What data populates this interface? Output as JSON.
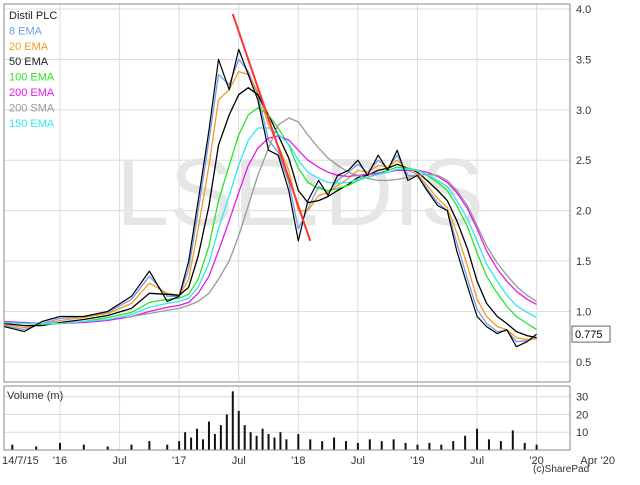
{
  "chart_data": {
    "type": "line",
    "title": "Distil PLC",
    "watermark": "LSE:DIS",
    "credit": "(c)SharePad",
    "price_axis": {
      "ylim": [
        0.3,
        4.05
      ],
      "ticks": [
        "4.0",
        "3.5",
        "3.0",
        "2.5",
        "2.0",
        "1.5",
        "1.0",
        "0.5"
      ],
      "tick_values": [
        4.0,
        3.5,
        3.0,
        2.5,
        2.0,
        1.5,
        1.0,
        0.5
      ]
    },
    "last_price": {
      "label": "0.775",
      "value": 0.775
    },
    "x_axis": {
      "labels": [
        "14/7/15",
        "'16",
        "Jul",
        "'17",
        "Jul",
        "'18",
        "Jul",
        "'19",
        "Jul",
        "'20",
        "Apr '20"
      ],
      "label_dates": [
        2015.53,
        2016.0,
        2016.5,
        2017.0,
        2017.5,
        2018.0,
        2018.5,
        2019.0,
        2019.5,
        2020.0,
        2020.25
      ],
      "range": [
        2015.53,
        2020.28
      ]
    },
    "grid": true,
    "legend_placement": "top-left",
    "series": [
      {
        "name": "Distil PLC",
        "role": "price",
        "color": "#000000",
        "x": [
          2015.53,
          2015.7,
          2015.85,
          2016.0,
          2016.2,
          2016.4,
          2016.6,
          2016.75,
          2016.9,
          2017.0,
          2017.08,
          2017.16,
          2017.25,
          2017.33,
          2017.42,
          2017.5,
          2017.58,
          2017.66,
          2017.75,
          2017.83,
          2017.92,
          2018.0,
          2018.08,
          2018.17,
          2018.25,
          2018.33,
          2018.42,
          2018.5,
          2018.58,
          2018.67,
          2018.75,
          2018.83,
          2018.92,
          2019.0,
          2019.08,
          2019.17,
          2019.25,
          2019.33,
          2019.42,
          2019.5,
          2019.58,
          2019.67,
          2019.75,
          2019.83,
          2019.92,
          2020.0
        ],
        "y": [
          0.85,
          0.8,
          0.9,
          0.95,
          0.95,
          1.0,
          1.15,
          1.4,
          1.1,
          1.15,
          1.5,
          2.1,
          2.8,
          3.5,
          3.2,
          3.6,
          3.35,
          3.1,
          2.6,
          2.55,
          2.2,
          1.7,
          2.1,
          2.3,
          2.15,
          2.35,
          2.4,
          2.5,
          2.35,
          2.55,
          2.4,
          2.6,
          2.3,
          2.35,
          2.2,
          2.05,
          2.0,
          1.6,
          1.25,
          0.95,
          0.85,
          0.78,
          0.82,
          0.65,
          0.7,
          0.775
        ]
      },
      {
        "name": "8 EMA",
        "color": "#6f9cf0",
        "x": [
          2015.53,
          2015.7,
          2015.85,
          2016.0,
          2016.2,
          2016.4,
          2016.6,
          2016.75,
          2016.9,
          2017.0,
          2017.08,
          2017.16,
          2017.25,
          2017.33,
          2017.42,
          2017.5,
          2017.58,
          2017.66,
          2017.75,
          2017.83,
          2017.92,
          2018.0,
          2018.08,
          2018.17,
          2018.25,
          2018.33,
          2018.42,
          2018.5,
          2018.58,
          2018.67,
          2018.75,
          2018.83,
          2018.92,
          2019.0,
          2019.08,
          2019.17,
          2019.25,
          2019.33,
          2019.42,
          2019.5,
          2019.58,
          2019.67,
          2019.75,
          2019.83,
          2019.92,
          2020.0
        ],
        "y": [
          0.86,
          0.82,
          0.88,
          0.93,
          0.95,
          0.99,
          1.12,
          1.35,
          1.15,
          1.15,
          1.42,
          2.0,
          2.7,
          3.35,
          3.25,
          3.5,
          3.38,
          3.15,
          2.7,
          2.58,
          2.28,
          1.82,
          2.02,
          2.24,
          2.18,
          2.3,
          2.38,
          2.46,
          2.38,
          2.5,
          2.42,
          2.55,
          2.35,
          2.35,
          2.22,
          2.08,
          2.0,
          1.68,
          1.32,
          1.02,
          0.88,
          0.8,
          0.81,
          0.7,
          0.71,
          0.74
        ]
      },
      {
        "name": "20 EMA",
        "color": "#f39c1e",
        "x": [
          2015.53,
          2015.7,
          2015.85,
          2016.0,
          2016.2,
          2016.4,
          2016.6,
          2016.75,
          2016.9,
          2017.0,
          2017.08,
          2017.16,
          2017.25,
          2017.33,
          2017.42,
          2017.5,
          2017.58,
          2017.66,
          2017.75,
          2017.83,
          2017.92,
          2018.0,
          2018.08,
          2018.17,
          2018.25,
          2018.33,
          2018.42,
          2018.5,
          2018.58,
          2018.67,
          2018.75,
          2018.83,
          2018.92,
          2019.0,
          2019.08,
          2019.17,
          2019.25,
          2019.33,
          2019.42,
          2019.5,
          2019.58,
          2019.67,
          2019.75,
          2019.83,
          2019.92,
          2020.0
        ],
        "y": [
          0.87,
          0.84,
          0.87,
          0.91,
          0.94,
          0.98,
          1.08,
          1.28,
          1.18,
          1.16,
          1.32,
          1.82,
          2.45,
          3.1,
          3.2,
          3.38,
          3.35,
          3.18,
          2.85,
          2.65,
          2.4,
          2.0,
          2.0,
          2.15,
          2.18,
          2.25,
          2.32,
          2.4,
          2.38,
          2.45,
          2.43,
          2.5,
          2.4,
          2.36,
          2.25,
          2.12,
          2.03,
          1.78,
          1.45,
          1.12,
          0.95,
          0.85,
          0.82,
          0.74,
          0.72,
          0.73
        ]
      },
      {
        "name": "50 EMA",
        "color": "#000000",
        "x": [
          2015.53,
          2015.7,
          2015.85,
          2016.0,
          2016.2,
          2016.4,
          2016.6,
          2016.75,
          2016.9,
          2017.0,
          2017.08,
          2017.16,
          2017.25,
          2017.33,
          2017.42,
          2017.5,
          2017.58,
          2017.66,
          2017.75,
          2017.83,
          2017.92,
          2018.0,
          2018.08,
          2018.17,
          2018.25,
          2018.33,
          2018.42,
          2018.5,
          2018.58,
          2018.67,
          2018.75,
          2018.83,
          2018.92,
          2019.0,
          2019.08,
          2019.17,
          2019.25,
          2019.33,
          2019.42,
          2019.5,
          2019.58,
          2019.67,
          2019.75,
          2019.83,
          2019.92,
          2020.0
        ],
        "y": [
          0.88,
          0.86,
          0.86,
          0.89,
          0.92,
          0.96,
          1.03,
          1.18,
          1.17,
          1.16,
          1.24,
          1.55,
          2.05,
          2.65,
          2.95,
          3.15,
          3.22,
          3.15,
          2.95,
          2.75,
          2.52,
          2.2,
          2.08,
          2.1,
          2.14,
          2.2,
          2.26,
          2.33,
          2.35,
          2.4,
          2.42,
          2.46,
          2.42,
          2.38,
          2.3,
          2.2,
          2.1,
          1.9,
          1.62,
          1.3,
          1.08,
          0.95,
          0.88,
          0.8,
          0.76,
          0.74
        ]
      },
      {
        "name": "100 EMA",
        "color": "#27e627",
        "x": [
          2015.53,
          2015.7,
          2015.85,
          2016.0,
          2016.2,
          2016.4,
          2016.6,
          2016.75,
          2016.9,
          2017.0,
          2017.08,
          2017.16,
          2017.25,
          2017.33,
          2017.42,
          2017.5,
          2017.58,
          2017.66,
          2017.75,
          2017.83,
          2017.92,
          2018.0,
          2018.08,
          2018.17,
          2018.25,
          2018.33,
          2018.42,
          2018.5,
          2018.58,
          2018.67,
          2018.75,
          2018.83,
          2018.92,
          2019.0,
          2019.08,
          2019.17,
          2019.25,
          2019.33,
          2019.42,
          2019.5,
          2019.58,
          2019.67,
          2019.75,
          2019.83,
          2019.92,
          2020.0
        ],
        "y": [
          0.89,
          0.88,
          0.87,
          0.88,
          0.9,
          0.94,
          0.99,
          1.09,
          1.12,
          1.13,
          1.17,
          1.32,
          1.65,
          2.1,
          2.45,
          2.75,
          2.95,
          3.02,
          2.95,
          2.82,
          2.65,
          2.42,
          2.28,
          2.22,
          2.2,
          2.22,
          2.25,
          2.3,
          2.33,
          2.37,
          2.4,
          2.43,
          2.42,
          2.4,
          2.35,
          2.28,
          2.2,
          2.05,
          1.84,
          1.58,
          1.35,
          1.18,
          1.05,
          0.95,
          0.88,
          0.82
        ]
      },
      {
        "name": "200 EMA",
        "color": "#e619e6",
        "x": [
          2015.53,
          2015.7,
          2015.85,
          2016.0,
          2016.2,
          2016.4,
          2016.6,
          2016.75,
          2016.9,
          2017.0,
          2017.08,
          2017.16,
          2017.25,
          2017.33,
          2017.42,
          2017.5,
          2017.58,
          2017.66,
          2017.75,
          2017.83,
          2017.92,
          2018.0,
          2018.08,
          2018.17,
          2018.25,
          2018.33,
          2018.42,
          2018.5,
          2018.58,
          2018.67,
          2018.75,
          2018.83,
          2018.92,
          2019.0,
          2019.08,
          2019.17,
          2019.25,
          2019.33,
          2019.42,
          2019.5,
          2019.58,
          2019.67,
          2019.75,
          2019.83,
          2019.92,
          2020.0
        ],
        "y": [
          0.9,
          0.89,
          0.88,
          0.88,
          0.89,
          0.91,
          0.95,
          1.0,
          1.04,
          1.06,
          1.09,
          1.18,
          1.35,
          1.6,
          1.9,
          2.18,
          2.45,
          2.62,
          2.72,
          2.74,
          2.7,
          2.6,
          2.5,
          2.43,
          2.38,
          2.35,
          2.34,
          2.35,
          2.36,
          2.37,
          2.38,
          2.4,
          2.4,
          2.4,
          2.38,
          2.34,
          2.28,
          2.18,
          2.02,
          1.82,
          1.6,
          1.42,
          1.3,
          1.2,
          1.12,
          1.07
        ]
      },
      {
        "name": "200 SMA",
        "color": "#999999",
        "x": [
          2016.55,
          2016.7,
          2016.85,
          2017.0,
          2017.08,
          2017.16,
          2017.25,
          2017.33,
          2017.42,
          2017.5,
          2017.58,
          2017.66,
          2017.75,
          2017.83,
          2017.92,
          2018.0,
          2018.08,
          2018.17,
          2018.25,
          2018.33,
          2018.42,
          2018.5,
          2018.58,
          2018.67,
          2018.75,
          2018.83,
          2018.92,
          2019.0,
          2019.08,
          2019.17,
          2019.25,
          2019.33,
          2019.42,
          2019.5,
          2019.58,
          2019.67,
          2019.75,
          2019.83,
          2019.92,
          2020.0
        ],
        "y": [
          0.94,
          0.97,
          1.0,
          1.03,
          1.06,
          1.1,
          1.18,
          1.32,
          1.5,
          1.75,
          2.05,
          2.35,
          2.62,
          2.85,
          2.92,
          2.88,
          2.75,
          2.62,
          2.52,
          2.45,
          2.38,
          2.35,
          2.32,
          2.3,
          2.3,
          2.31,
          2.33,
          2.35,
          2.36,
          2.35,
          2.3,
          2.2,
          2.05,
          1.85,
          1.65,
          1.48,
          1.36,
          1.25,
          1.16,
          1.1
        ]
      },
      {
        "name": "150 EMA",
        "color": "#2ee8f0",
        "x": [
          2015.53,
          2015.7,
          2015.85,
          2016.0,
          2016.2,
          2016.4,
          2016.6,
          2016.75,
          2016.9,
          2017.0,
          2017.08,
          2017.16,
          2017.25,
          2017.33,
          2017.42,
          2017.5,
          2017.58,
          2017.66,
          2017.75,
          2017.83,
          2017.92,
          2018.0,
          2018.08,
          2018.17,
          2018.25,
          2018.33,
          2018.42,
          2018.5,
          2018.58,
          2018.67,
          2018.75,
          2018.83,
          2018.92,
          2019.0,
          2019.08,
          2019.17,
          2019.25,
          2019.33,
          2019.42,
          2019.5,
          2019.58,
          2019.67,
          2019.75,
          2019.83,
          2019.92,
          2020.0
        ],
        "y": [
          0.89,
          0.88,
          0.88,
          0.88,
          0.9,
          0.92,
          0.97,
          1.04,
          1.08,
          1.1,
          1.13,
          1.24,
          1.48,
          1.82,
          2.15,
          2.45,
          2.7,
          2.82,
          2.82,
          2.76,
          2.66,
          2.5,
          2.38,
          2.32,
          2.28,
          2.27,
          2.28,
          2.31,
          2.33,
          2.36,
          2.38,
          2.41,
          2.41,
          2.4,
          2.36,
          2.3,
          2.24,
          2.1,
          1.92,
          1.7,
          1.47,
          1.3,
          1.16,
          1.06,
          0.99,
          0.94
        ]
      }
    ],
    "trendline": {
      "color": "#ff3333",
      "x": [
        2017.45,
        2018.1
      ],
      "y": [
        3.95,
        1.7
      ]
    },
    "volume": {
      "title": "Volume (m)",
      "ylim": [
        0,
        36
      ],
      "ticks": [
        "30",
        "20",
        "10"
      ],
      "tick_values": [
        30,
        20,
        10
      ],
      "x": [
        2015.6,
        2015.8,
        2016.0,
        2016.2,
        2016.4,
        2016.6,
        2016.75,
        2016.9,
        2017.0,
        2017.05,
        2017.1,
        2017.15,
        2017.2,
        2017.25,
        2017.3,
        2017.35,
        2017.4,
        2017.45,
        2017.5,
        2017.55,
        2017.6,
        2017.65,
        2017.7,
        2017.75,
        2017.8,
        2017.85,
        2017.9,
        2018.0,
        2018.1,
        2018.2,
        2018.3,
        2018.4,
        2018.5,
        2018.6,
        2018.7,
        2018.8,
        2018.9,
        2019.0,
        2019.1,
        2019.2,
        2019.3,
        2019.4,
        2019.5,
        2019.6,
        2019.7,
        2019.8,
        2019.9,
        2020.0
      ],
      "values": [
        3,
        2,
        4,
        3,
        2,
        3,
        5,
        3,
        5,
        10,
        7,
        12,
        6,
        16,
        9,
        14,
        20,
        33,
        22,
        14,
        10,
        8,
        12,
        9,
        7,
        10,
        6,
        9,
        6,
        5,
        7,
        5,
        4,
        6,
        5,
        6,
        4,
        3,
        4,
        3,
        5,
        8,
        12,
        6,
        5,
        11,
        4,
        3
      ]
    },
    "legend_entries": [
      "Distil PLC",
      "8 EMA",
      "20 EMA",
      "50 EMA",
      "100 EMA",
      "200 EMA",
      "200 SMA",
      "150 EMA"
    ],
    "legend_colors": [
      "#222222",
      "#6f9cf0",
      "#f39c1e",
      "#222222",
      "#27e627",
      "#e619e6",
      "#999999",
      "#2ee8f0"
    ]
  }
}
